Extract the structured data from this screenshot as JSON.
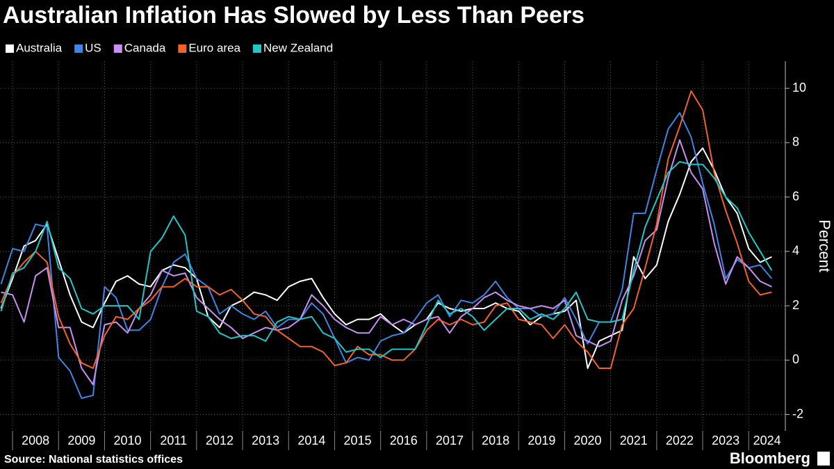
{
  "chart_data": {
    "type": "line",
    "title": "Australian Inflation Has Slowed by Less Than Peers",
    "y_axis_label": "Percent",
    "source": "Source: National statistics offices",
    "brand": "Bloomberg",
    "categories": [
      null,
      null,
      null,
      "2008",
      null,
      null,
      null,
      "2009",
      null,
      null,
      null,
      "2010",
      null,
      null,
      null,
      "2011",
      null,
      null,
      null,
      "2012",
      null,
      null,
      null,
      "2013",
      null,
      null,
      null,
      "2014",
      null,
      null,
      null,
      "2015",
      null,
      null,
      null,
      "2016",
      null,
      null,
      null,
      "2017",
      null,
      null,
      null,
      "2018",
      null,
      null,
      null,
      "2019",
      null,
      null,
      null,
      "2020",
      null,
      null,
      null,
      "2021",
      null,
      null,
      null,
      "2022",
      null,
      null,
      null,
      "2023",
      null,
      null,
      null,
      "2024"
    ],
    "ylim": [
      -2.6,
      11
    ],
    "yticks": [
      -2,
      0,
      2,
      4,
      6,
      8,
      10
    ],
    "grid": true,
    "legend": "top-left",
    "series": [
      {
        "name": "Australia",
        "color": "#ffffff",
        "values": [
          1.9,
          3.0,
          4.2,
          4.4,
          5.0,
          3.7,
          2.4,
          1.4,
          1.2,
          2.1,
          2.9,
          3.1,
          2.8,
          2.7,
          3.3,
          3.5,
          3.4,
          3.0,
          1.6,
          1.2,
          2.0,
          2.2,
          2.5,
          2.4,
          2.2,
          2.7,
          2.9,
          3.0,
          2.3,
          1.7,
          1.3,
          1.5,
          1.5,
          1.7,
          1.3,
          1.0,
          1.3,
          1.5,
          2.1,
          1.9,
          1.8,
          1.9,
          1.9,
          2.1,
          1.9,
          1.8,
          1.3,
          1.6,
          1.7,
          1.8,
          2.2,
          -0.3,
          0.7,
          0.9,
          1.1,
          3.8,
          3.0,
          3.5,
          5.1,
          6.1,
          7.3,
          7.8,
          7.0,
          6.0,
          5.4,
          4.1,
          3.6,
          3.8
        ]
      },
      {
        "name": "US",
        "color": "#3d86e6",
        "values": [
          2.8,
          4.1,
          4.0,
          5.0,
          4.9,
          0.1,
          -0.4,
          -1.4,
          -1.3,
          2.7,
          2.3,
          1.1,
          1.1,
          1.5,
          2.7,
          3.6,
          3.9,
          3.0,
          2.7,
          1.7,
          2.0,
          1.7,
          1.5,
          1.8,
          1.2,
          1.5,
          1.5,
          2.1,
          1.7,
          0.8,
          -0.1,
          0.1,
          0.0,
          0.7,
          0.9,
          1.0,
          1.5,
          2.1,
          2.4,
          1.6,
          2.2,
          2.1,
          2.4,
          2.9,
          2.3,
          1.9,
          1.9,
          1.6,
          1.7,
          2.3,
          1.5,
          0.6,
          1.4,
          1.4,
          2.6,
          5.4,
          5.4,
          7.0,
          8.5,
          9.1,
          8.2,
          6.5,
          5.0,
          3.0,
          3.7,
          3.4,
          3.5,
          3.0
        ]
      },
      {
        "name": "Canada",
        "color": "#c98ff2",
        "values": [
          2.5,
          2.4,
          1.4,
          3.1,
          3.4,
          1.2,
          1.2,
          -0.3,
          -0.9,
          1.3,
          1.4,
          1.0,
          1.9,
          2.4,
          3.3,
          3.1,
          3.2,
          2.3,
          1.9,
          1.5,
          1.2,
          0.8,
          1.0,
          1.2,
          1.1,
          1.2,
          1.5,
          2.4,
          2.0,
          1.5,
          1.2,
          1.0,
          1.0,
          1.6,
          1.3,
          1.5,
          1.3,
          1.5,
          1.6,
          1.0,
          1.6,
          1.9,
          2.3,
          2.5,
          2.2,
          2.0,
          1.9,
          2.0,
          1.9,
          2.2,
          0.9,
          0.7,
          0.5,
          0.7,
          2.2,
          3.1,
          4.4,
          4.8,
          6.7,
          8.1,
          6.9,
          6.3,
          4.3,
          2.8,
          3.8,
          3.4,
          2.9,
          2.7
        ]
      },
      {
        "name": "Euro area",
        "color": "#f4622a",
        "values": [
          2.1,
          3.1,
          3.6,
          4.0,
          3.6,
          1.6,
          0.6,
          -0.1,
          -0.3,
          0.9,
          1.6,
          1.5,
          1.9,
          2.2,
          2.7,
          2.7,
          3.0,
          2.7,
          2.7,
          2.4,
          2.6,
          2.2,
          1.7,
          1.6,
          1.1,
          0.8,
          0.5,
          0.5,
          0.3,
          -0.2,
          -0.1,
          0.5,
          0.2,
          0.2,
          0.0,
          0.0,
          0.4,
          1.1,
          1.5,
          1.3,
          1.5,
          1.3,
          1.4,
          2.0,
          2.1,
          1.5,
          1.4,
          1.3,
          0.8,
          1.3,
          0.7,
          0.3,
          -0.3,
          -0.3,
          1.3,
          1.9,
          3.4,
          5.0,
          7.4,
          8.6,
          9.9,
          9.2,
          6.9,
          5.5,
          4.3,
          2.9,
          2.4,
          2.5
        ]
      },
      {
        "name": "New Zealand",
        "color": "#21c7c7",
        "values": [
          1.8,
          3.2,
          3.4,
          4.0,
          5.1,
          3.4,
          3.0,
          1.9,
          1.7,
          2.0,
          2.0,
          2.0,
          1.5,
          4.0,
          4.5,
          5.3,
          4.6,
          1.8,
          1.6,
          1.0,
          0.8,
          0.9,
          0.9,
          0.7,
          1.4,
          1.6,
          1.5,
          1.6,
          1.0,
          0.8,
          0.3,
          0.4,
          0.4,
          0.1,
          0.4,
          0.4,
          0.4,
          1.3,
          2.2,
          1.7,
          1.9,
          1.6,
          1.1,
          1.5,
          1.9,
          1.9,
          1.5,
          1.7,
          1.5,
          1.9,
          2.5,
          1.5,
          1.4,
          1.4,
          1.5,
          3.3,
          4.9,
          5.9,
          6.9,
          7.3,
          7.2,
          7.2,
          6.7,
          6.0,
          5.6,
          4.7,
          4.0,
          3.3
        ]
      }
    ]
  }
}
